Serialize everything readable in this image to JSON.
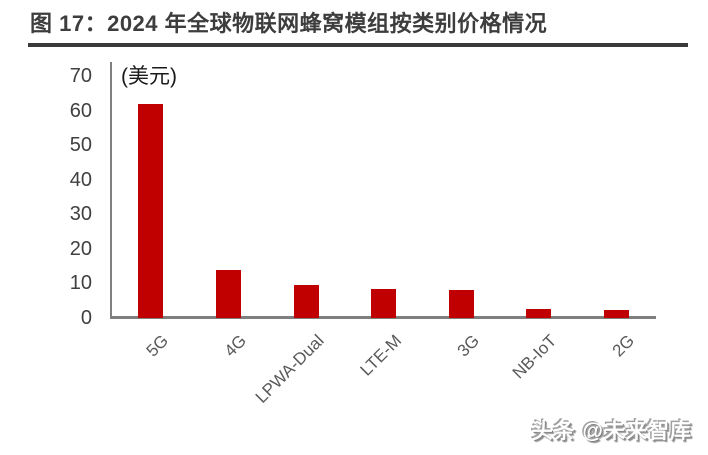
{
  "header": {
    "title": "图 17：2024 年全球物联网蜂窝模组按类别价格情况"
  },
  "footer": {
    "watermark": "头条 @未来智库"
  },
  "chart_data": {
    "type": "bar",
    "title": "2024 年全球物联网蜂窝模组按类别价格情况",
    "unit_label": "(美元)",
    "categories": [
      "5G",
      "4G",
      "LPWA-Dual",
      "LTE-M",
      "3G",
      "NB-IoT",
      "2G"
    ],
    "values": [
      62,
      14,
      9.5,
      8.5,
      8.2,
      2.6,
      2.3
    ],
    "xlabel": "",
    "ylabel": "美元",
    "yticks": [
      0,
      10,
      20,
      30,
      40,
      50,
      60,
      70
    ],
    "ylim": [
      0,
      70
    ],
    "grid": false,
    "legend_position": "none",
    "bar_color": "#C00000",
    "axis_color": "#808080",
    "tick_label_color": "#404040",
    "category_label_color": "#595959"
  }
}
